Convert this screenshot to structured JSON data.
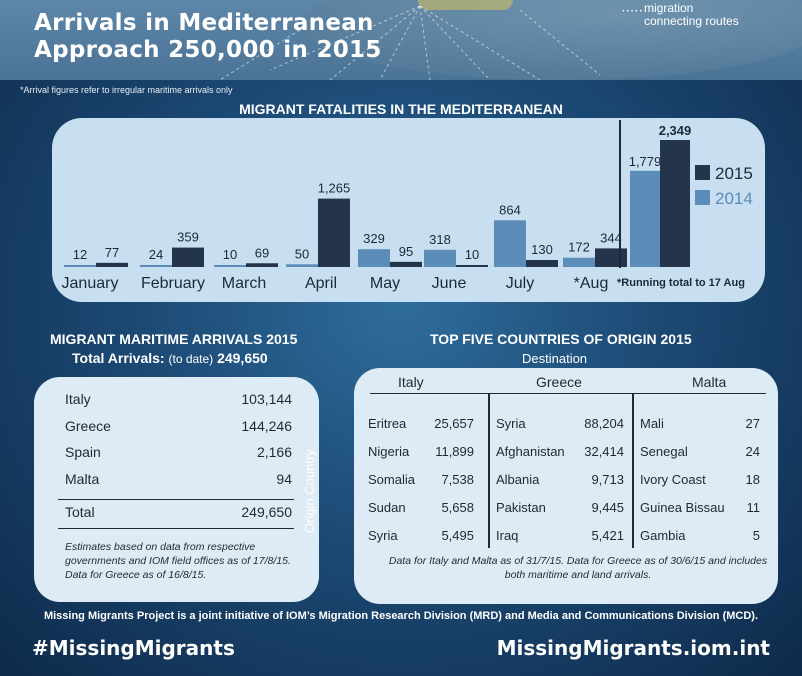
{
  "header": {
    "title_line1": "Arrivals in Mediterranean",
    "title_line2": "Approach 250,000 in 2015",
    "legend_line1": "migration",
    "legend_line2": "connecting routes"
  },
  "footnote": "*Arrival figures refer to irregular maritime arrivals only",
  "chart_data": {
    "type": "bar",
    "title": "MIGRANT FATALITIES  IN THE MEDITERRANEAN",
    "categories": [
      "January",
      "February",
      "March",
      "April",
      "May",
      "June",
      "July",
      "*Aug"
    ],
    "series": [
      {
        "name": "2014",
        "values": [
          12,
          24,
          10,
          50,
          329,
          318,
          864,
          172
        ],
        "color": "#5b8db8"
      },
      {
        "name": "2015",
        "values": [
          77,
          359,
          69,
          1265,
          95,
          10,
          130,
          344
        ],
        "color": "#24344a"
      }
    ],
    "running_total": {
      "note": "*Running total to 17 Aug",
      "series": [
        {
          "name": "2014",
          "value": 1779
        },
        {
          "name": "2015",
          "value": 2349
        }
      ]
    },
    "legend": [
      "2015",
      "2014"
    ],
    "legend_placement": "right",
    "grid": false
  },
  "arrivals": {
    "title": "MIGRANT MARITIME ARRIVALS 2015",
    "total_label": "Total Arrivals:",
    "total_sub": "(to date)",
    "total_value": "249,650",
    "rows": [
      {
        "country": "Italy",
        "value": "103,144"
      },
      {
        "country": "Greece",
        "value": "144,246"
      },
      {
        "country": "Spain",
        "value": "2,166"
      },
      {
        "country": "Malta",
        "value": "94"
      }
    ],
    "total_row": {
      "label": "Total",
      "value": "249,650"
    },
    "note": "Estimates based on data from respective governments and IOM field offices as of 17/8/15. Data for Greece as of 16/8/15."
  },
  "origins": {
    "title": "TOP FIVE COUNTRIES OF ORIGIN  2015",
    "destination_label": "Destination",
    "axis_label": "Origin Country",
    "columns": [
      {
        "header": "Italy",
        "rows": [
          {
            "country": "Eritrea",
            "value": "25,657"
          },
          {
            "country": "Nigeria",
            "value": "11,899"
          },
          {
            "country": "Somalia",
            "value": "7,538"
          },
          {
            "country": "Sudan",
            "value": "5,658"
          },
          {
            "country": "Syria",
            "value": "5,495"
          }
        ]
      },
      {
        "header": "Greece",
        "rows": [
          {
            "country": "Syria",
            "value": "88,204"
          },
          {
            "country": "Afghanistan",
            "value": "32,414"
          },
          {
            "country": "Albania",
            "value": "9,713"
          },
          {
            "country": "Pakistan",
            "value": "9,445"
          },
          {
            "country": "Iraq",
            "value": "5,421"
          }
        ]
      },
      {
        "header": "Malta",
        "rows": [
          {
            "country": "Mali",
            "value": "27"
          },
          {
            "country": "Senegal",
            "value": "24"
          },
          {
            "country": "Ivory Coast",
            "value": "18"
          },
          {
            "country": "Guinea Bissau",
            "value": "11"
          },
          {
            "country": "Gambia",
            "value": "5"
          }
        ]
      }
    ],
    "note": "Data for Italy and Malta as of 31/7/15. Data for Greece as of 30/6/15 and includes both maritime and land arrivals."
  },
  "credit": "Missing Migrants Project is a joint initiative of IOM’s Migration Research Division (MRD) and Media and Communications Division (MCD).",
  "hashtag": "#MissingMigrants",
  "site": "MissingMigrants.iom.int"
}
